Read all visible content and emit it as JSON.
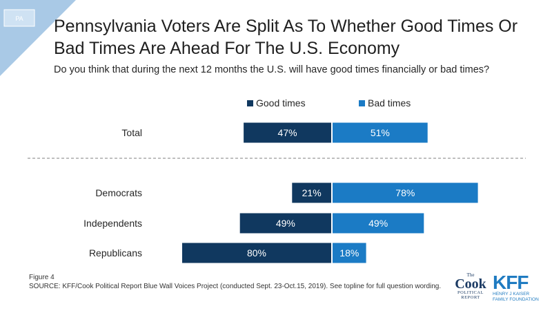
{
  "badge": {
    "label": "PA"
  },
  "title": "Pennsylvania Voters Are Split As To Whether Good Times Or Bad Times Are Ahead For The U.S. Economy",
  "subtitle": "Do you think that during the next 12 months the U.S. will have good times financially or bad times?",
  "footer": {
    "figure": "Figure 4",
    "source": "SOURCE: KFF/Cook Political Report Blue Wall Voices Project (conducted Sept. 23-Oct.15, 2019). See topline for full question wording."
  },
  "logos": {
    "cook_the": "The",
    "cook_name": "Cook",
    "cook_sub1": "POLITICAL",
    "cook_sub2": "REPORT",
    "kff_name": "KFF",
    "kff_sub1": "HENRY J KAISER",
    "kff_sub2": "FAMILY FOUNDATION"
  },
  "colors": {
    "good": "#10385f",
    "bad": "#1b7bc5",
    "badge": "#a9c9e6"
  },
  "chart_data": {
    "type": "bar",
    "orientation": "horizontal-diverging",
    "categories": [
      "Total",
      "Democrats",
      "Independents",
      "Republicans"
    ],
    "series": [
      {
        "name": "Good times",
        "values": [
          47,
          21,
          49,
          80
        ],
        "labels": [
          "47%",
          "21%",
          "49%",
          "80%"
        ]
      },
      {
        "name": "Bad times",
        "values": [
          51,
          78,
          49,
          18
        ],
        "labels": [
          "51%",
          "78%",
          "49%",
          "18%"
        ]
      }
    ],
    "unit": "%",
    "legend": "top-center",
    "separator_after": "Total",
    "grid": false
  }
}
